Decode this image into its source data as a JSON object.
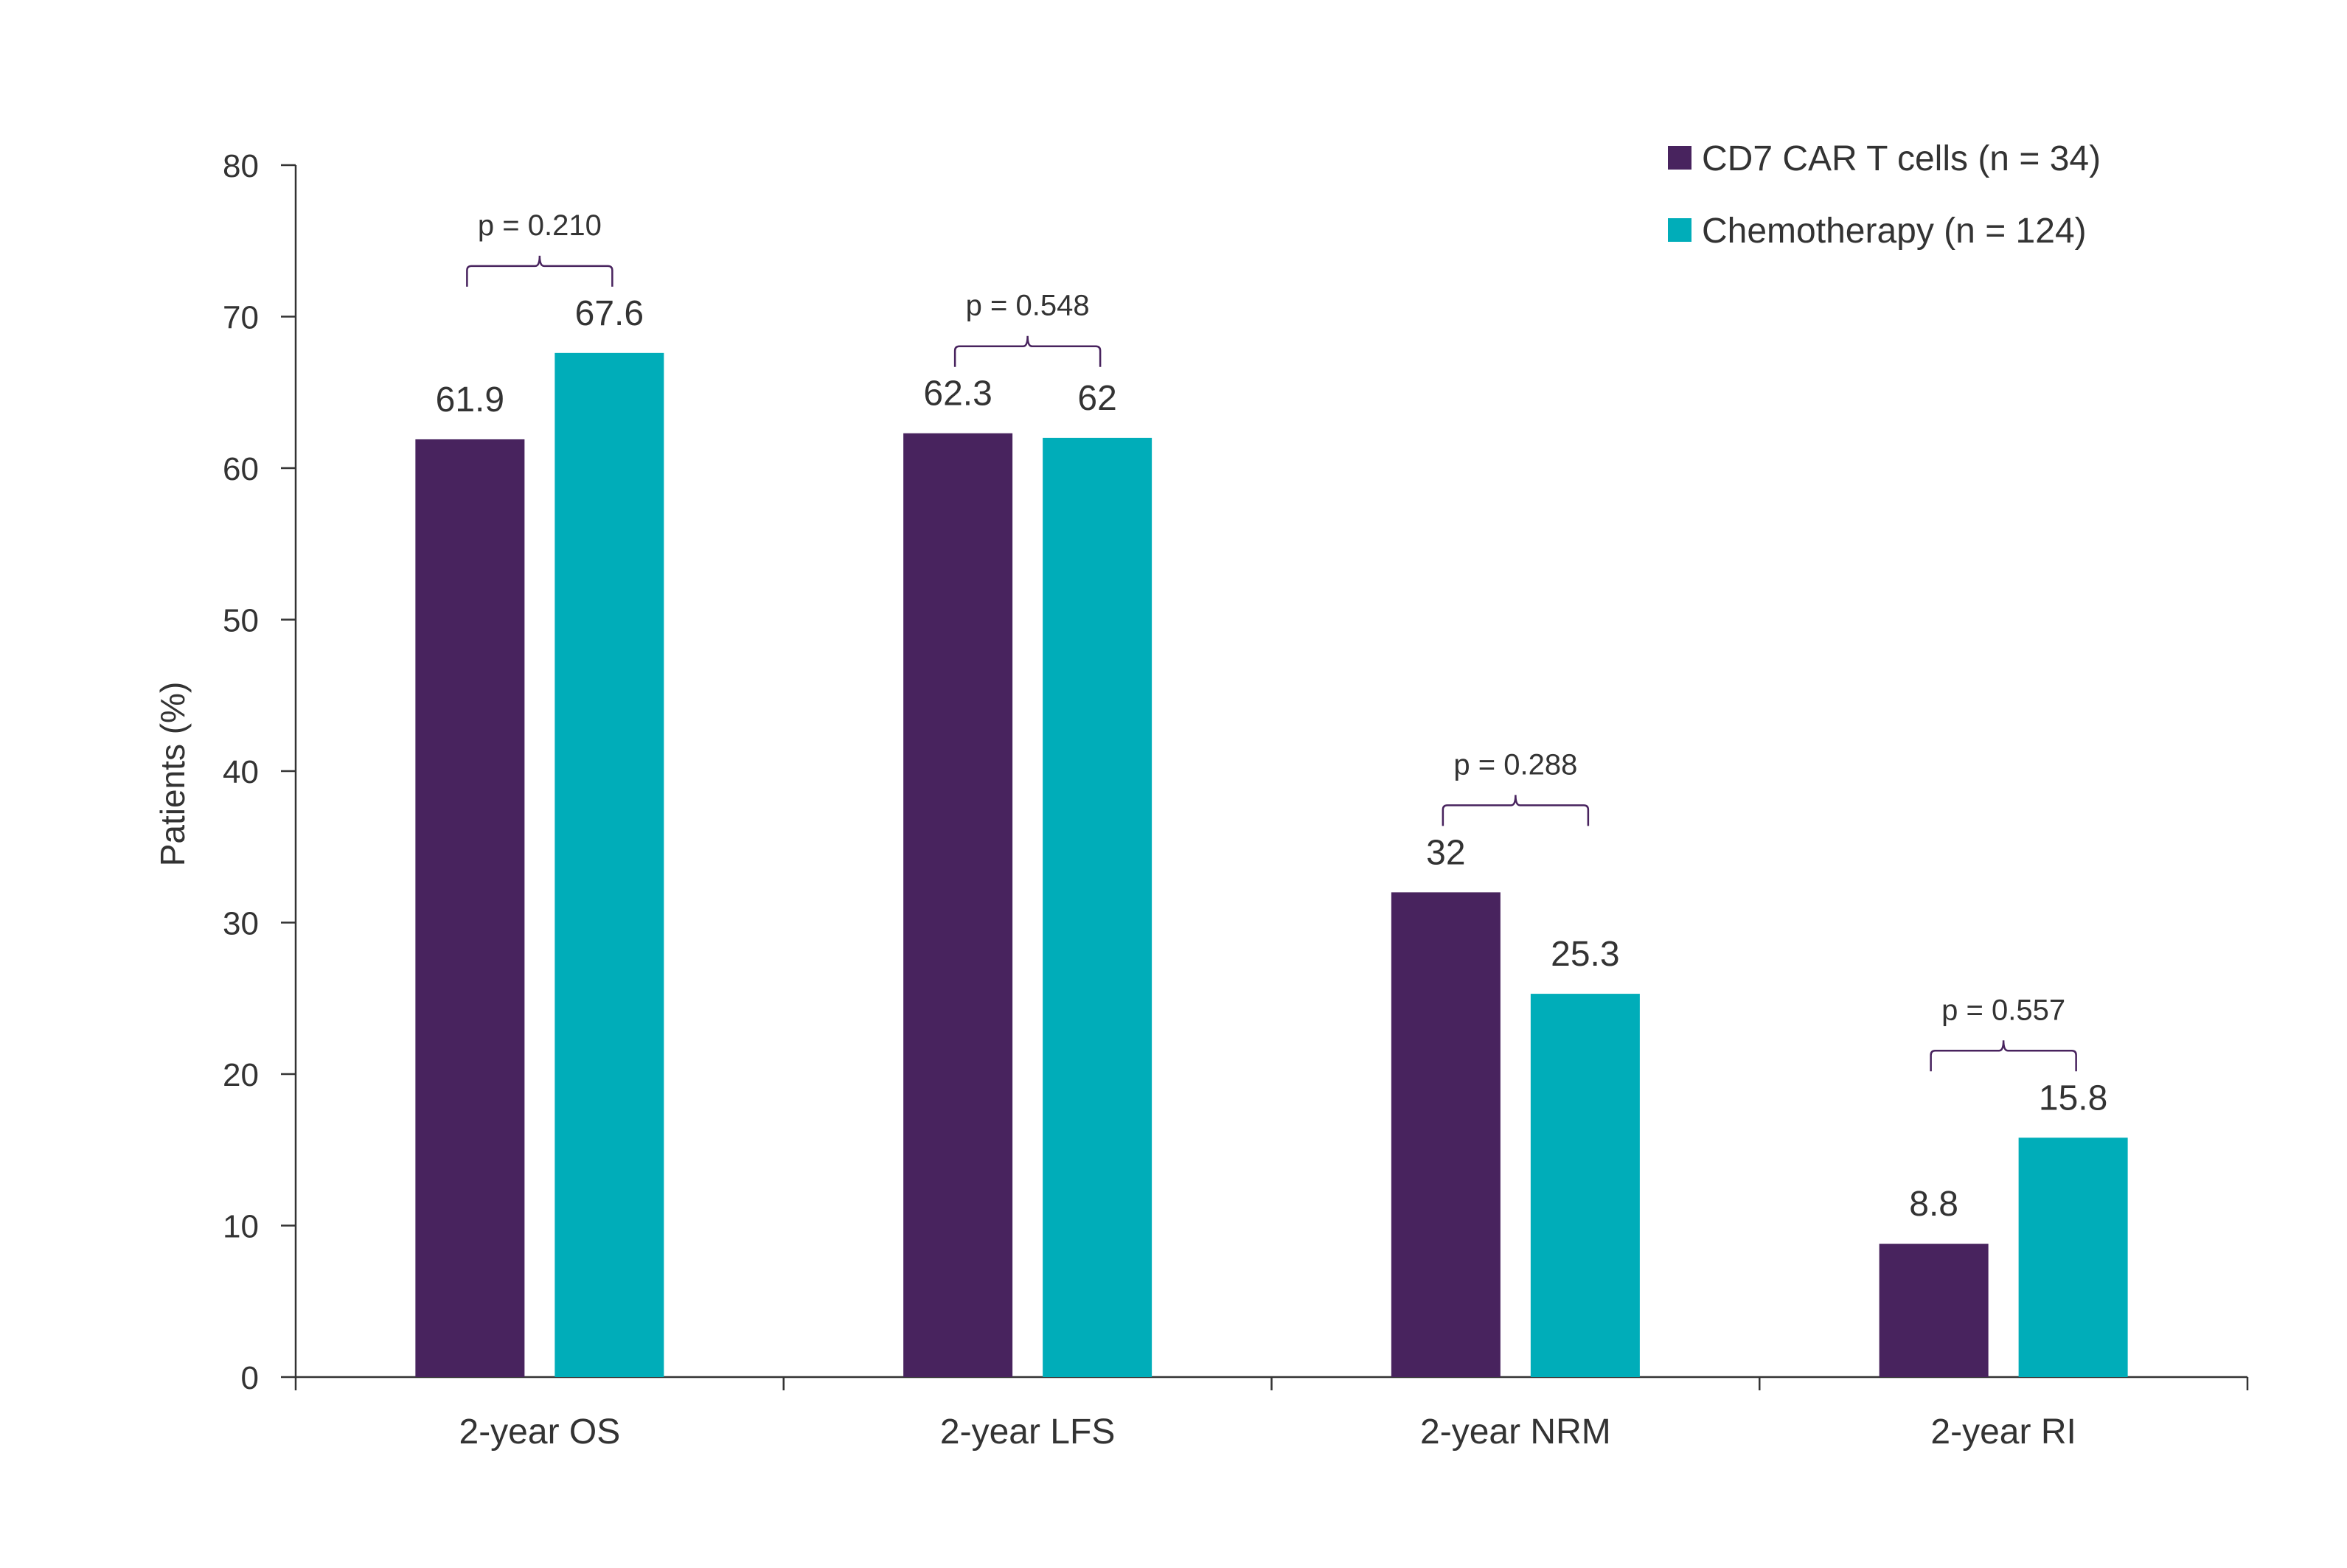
{
  "chart_data": {
    "type": "bar",
    "categories": [
      "2-year OS",
      "2-year LFS",
      "2-year NRM",
      "2-year RI"
    ],
    "series": [
      {
        "name": "CD7 CAR T cells (n = 34)",
        "values": [
          61.9,
          62.3,
          32,
          8.8
        ],
        "color": "#48235e"
      },
      {
        "name": "Chemotherapy (n = 124)",
        "values": [
          67.6,
          62,
          25.3,
          15.8
        ],
        "color": "#00adb9"
      }
    ],
    "data_labels": [
      [
        "61.9",
        "67.6"
      ],
      [
        "62.3",
        "62"
      ],
      [
        "32",
        "25.3"
      ],
      [
        "8.8",
        "15.8"
      ]
    ],
    "annotations": [
      "p = 0.210",
      "p = 0.548",
      "p = 0.288",
      "p = 0.557"
    ],
    "annotation_color": "#48235e",
    "ylabel": "Patients (%)",
    "xlabel": "",
    "ylim": [
      0,
      80
    ],
    "yticks": [
      0,
      10,
      20,
      30,
      40,
      50,
      60,
      70,
      80
    ],
    "grid": false,
    "legend_position": "top-right"
  }
}
